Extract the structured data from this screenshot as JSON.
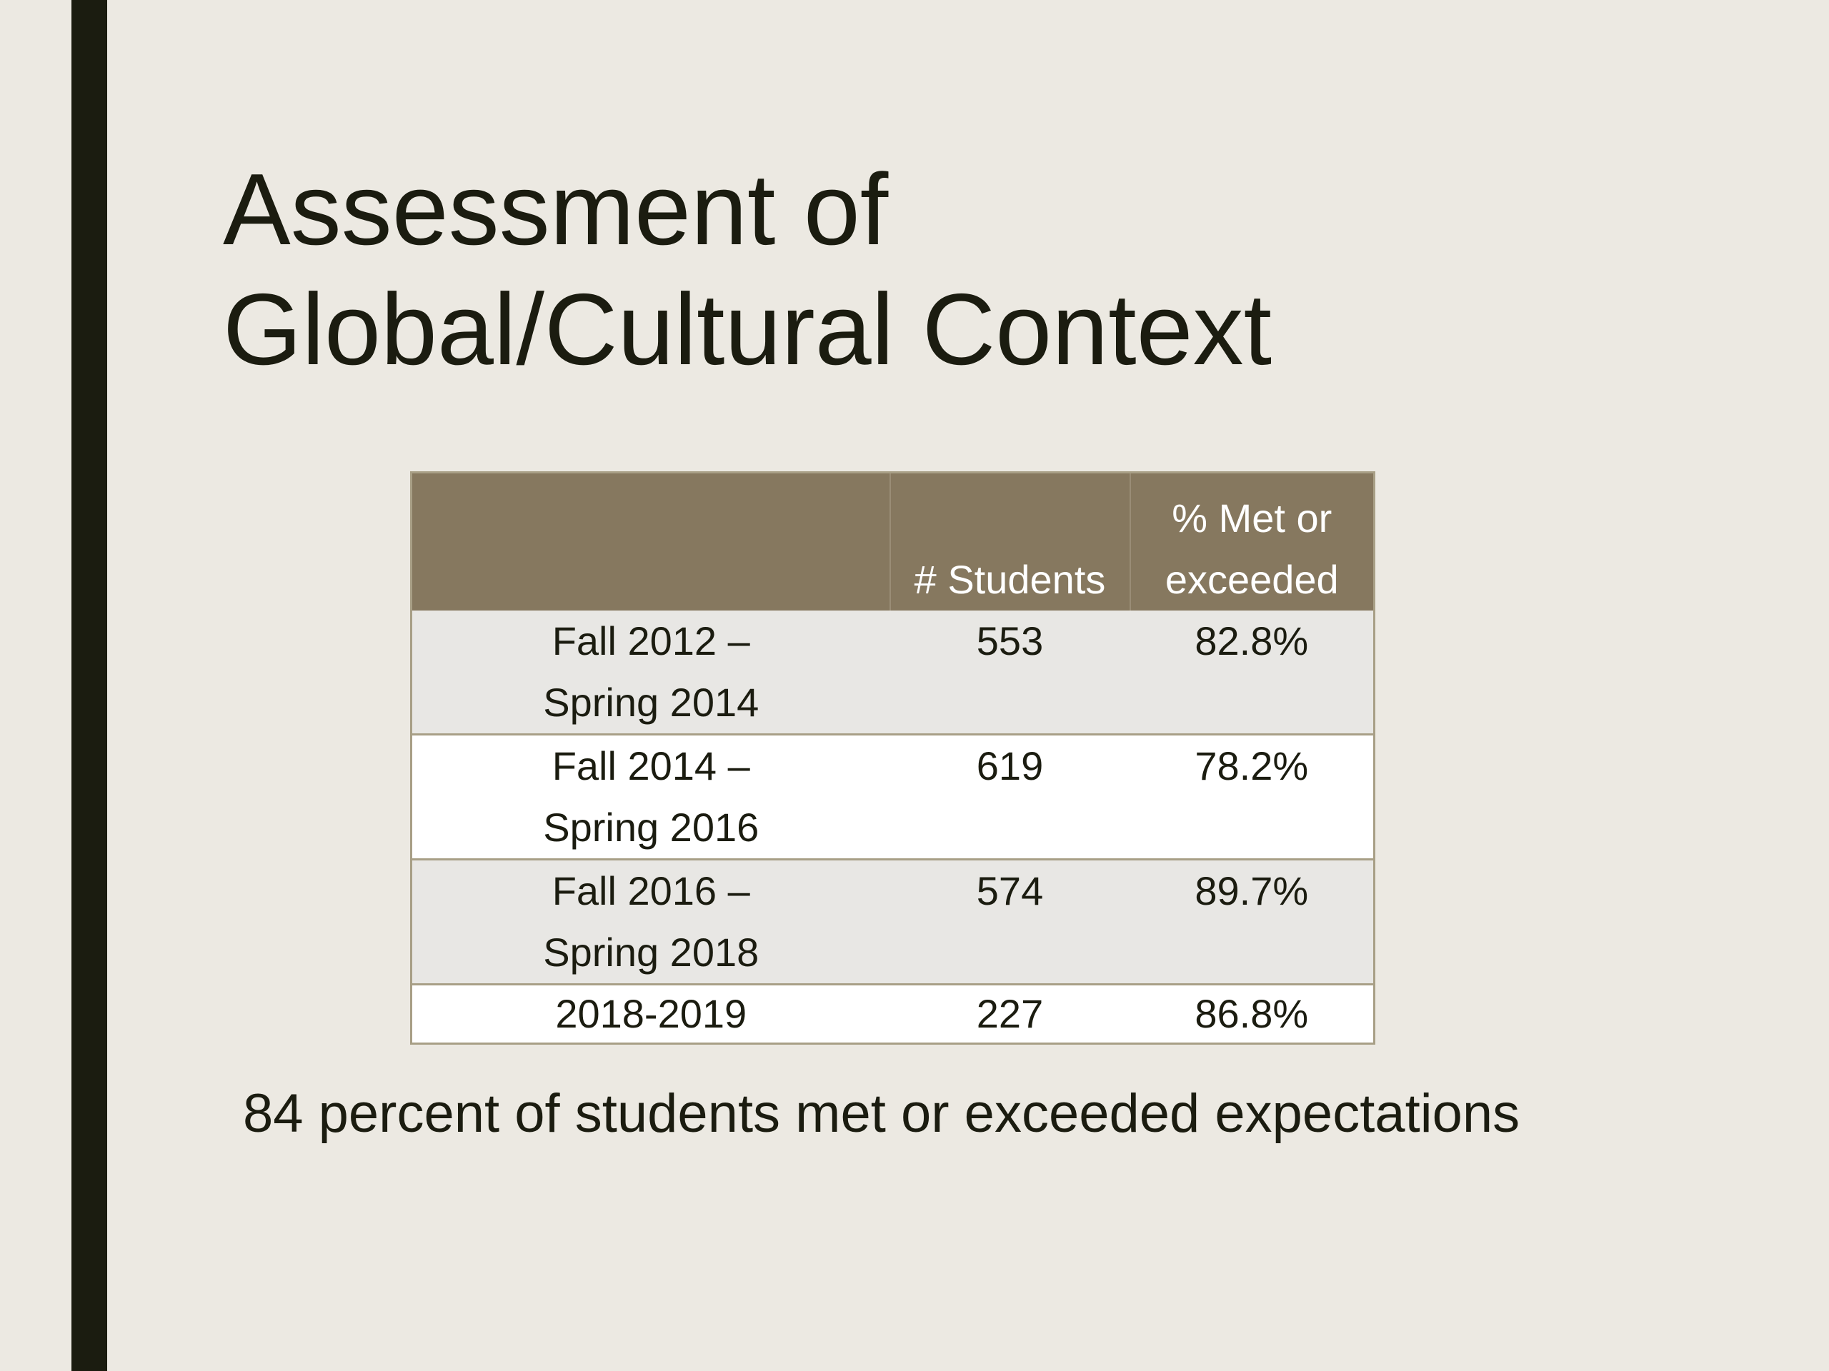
{
  "slide": {
    "title_line1": "Assessment of",
    "title_line2": "Global/Cultural Context",
    "summary": "84 percent of students met or exceeded expectations"
  },
  "table": {
    "headers": {
      "period": "",
      "students": "# Students",
      "met_line1": "% Met or",
      "met_line2": "exceeded"
    },
    "rows": [
      {
        "period_line1": "Fall 2012 –",
        "period_line2": "Spring 2014",
        "students": "553",
        "met": "82.8%"
      },
      {
        "period_line1": "Fall 2014 –",
        "period_line2": "Spring 2016",
        "students": "619",
        "met": "78.2%"
      },
      {
        "period_line1": "Fall 2016 –",
        "period_line2": "Spring 2018",
        "students": "574",
        "met": "89.7%"
      },
      {
        "period_line1": "2018-2019",
        "period_line2": "",
        "students": "227",
        "met": "86.8%"
      }
    ]
  },
  "colors": {
    "background": "#ece9e2",
    "accent_bar": "#1b1c10",
    "header_fill": "#86785f",
    "row_shade": "#e8e7e4",
    "row_plain": "#ffffff"
  }
}
